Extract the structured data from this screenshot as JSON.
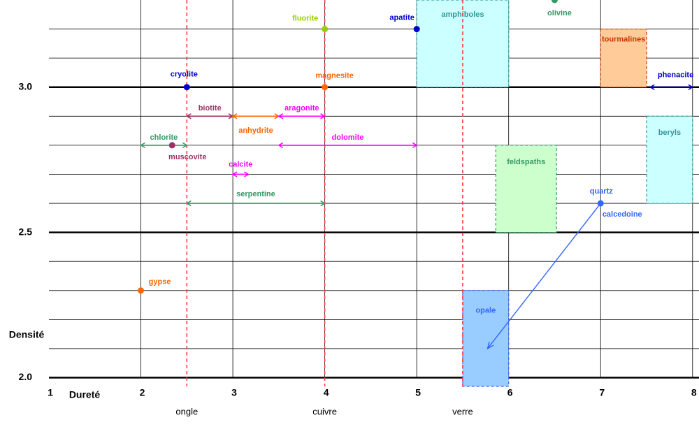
{
  "chart_data": {
    "type": "mineral-map",
    "x_label": "Dureté",
    "y_label": "Densité",
    "xlim": [
      1,
      8.07
    ],
    "ylim": [
      1.97,
      3.3
    ],
    "xticks": [
      1,
      2,
      3,
      4,
      5,
      6,
      7,
      8
    ],
    "yticks": [
      {
        "value": 2,
        "label": "2.0"
      },
      {
        "value": 2.5,
        "label": "2.5"
      },
      {
        "value": 3,
        "label": "3.0"
      }
    ],
    "minor_yticks": [
      2.1,
      2.2,
      2.3,
      2.4,
      2.6,
      2.7,
      2.8,
      2.9,
      3.1,
      3.2
    ],
    "grid": true,
    "reference_lines": {
      "color": "#ff3333",
      "lines": [
        {
          "x": 2.5,
          "label": "ongle"
        },
        {
          "x": 4,
          "label": "cuivre"
        },
        {
          "x": 5.5,
          "label": "verre"
        }
      ]
    },
    "boxes": [
      {
        "name": "amphiboles",
        "x": [
          5,
          6
        ],
        "y": [
          3.0,
          3.3
        ],
        "fill": "#ccffff",
        "color": "#339999"
      },
      {
        "name": "tourmalines",
        "x": [
          7,
          7.5
        ],
        "y": [
          3.0,
          3.2
        ],
        "fill": "#ffcc99",
        "color": "#cc3300"
      },
      {
        "name": "beryls",
        "x": [
          7.5,
          8
        ],
        "y": [
          2.6,
          2.9
        ],
        "fill": "#ccffff",
        "color": "#339999"
      },
      {
        "name": "feldspaths",
        "x": [
          5.86,
          6.52
        ],
        "y": [
          2.5,
          2.8
        ],
        "fill": "#ccffcc",
        "color": "#339966"
      },
      {
        "name": "opale",
        "x": [
          5.5,
          6
        ],
        "y": [
          1.97,
          2.3
        ],
        "fill": "#99ccff",
        "color": "#3366ff"
      }
    ],
    "ranges": [
      {
        "name": "biotite",
        "x": [
          2.5,
          3
        ],
        "y": 2.9,
        "color": "#993366"
      },
      {
        "name": "anhydrite",
        "x": [
          3,
          3.5
        ],
        "y": 2.9,
        "color": "#ff6600"
      },
      {
        "name": "aragonite",
        "x": [
          3.5,
          4
        ],
        "y": 2.9,
        "color": "#ff00ff"
      },
      {
        "name": "chlorite",
        "x": [
          2,
          2.5
        ],
        "y": 2.8,
        "color": "#339966"
      },
      {
        "name": "dolomite",
        "x": [
          3.5,
          5
        ],
        "y": 2.8,
        "color": "#ff00ff"
      },
      {
        "name": "calcite",
        "x": [
          3,
          3.17
        ],
        "y": 2.7,
        "color": "#ff00ff"
      },
      {
        "name": "serpentine",
        "x": [
          2.5,
          4
        ],
        "y": 2.6,
        "color": "#339966"
      },
      {
        "name": "phenacite",
        "x": [
          7.54,
          8
        ],
        "y": 3.0,
        "color": "#0000cc"
      }
    ],
    "points": [
      {
        "name": "fluorite",
        "x": 4,
        "y": 3.2,
        "color": "#99cc00"
      },
      {
        "name": "apatite",
        "x": 5,
        "y": 3.2,
        "color": "#0000cc"
      },
      {
        "name": "olivine",
        "x": 6.5,
        "y": 3.3,
        "color": "#339966"
      },
      {
        "name": "cryolite",
        "x": 2.5,
        "y": 3.0,
        "color": "#0000cc"
      },
      {
        "name": "magnesite",
        "x": 4,
        "y": 3.0,
        "color": "#ff6600"
      },
      {
        "name": "gypse",
        "x": 2,
        "y": 2.3,
        "color": "#ff6600"
      },
      {
        "name": "muscovite",
        "x": 2.34,
        "y": 2.8,
        "color": "#993366"
      },
      {
        "name": "quartz",
        "alt_name": "calcedoine",
        "x": 7,
        "y": 2.6,
        "color": "#3366ff"
      }
    ],
    "arrow": {
      "x": [
        7,
        5.77
      ],
      "y": [
        2.6,
        2.1
      ],
      "color": "#3366ff"
    }
  }
}
